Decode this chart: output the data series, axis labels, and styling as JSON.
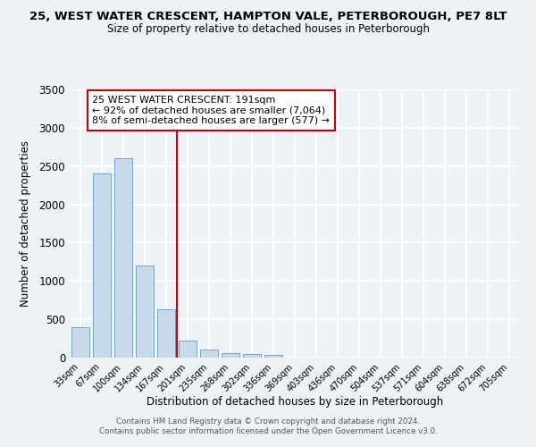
{
  "title_line1": "25, WEST WATER CRESCENT, HAMPTON VALE, PETERBOROUGH, PE7 8LT",
  "title_line2": "Size of property relative to detached houses in Peterborough",
  "xlabel": "Distribution of detached houses by size in Peterborough",
  "ylabel": "Number of detached properties",
  "categories": [
    "33sqm",
    "67sqm",
    "100sqm",
    "134sqm",
    "167sqm",
    "201sqm",
    "235sqm",
    "268sqm",
    "302sqm",
    "336sqm",
    "369sqm",
    "403sqm",
    "436sqm",
    "470sqm",
    "504sqm",
    "537sqm",
    "571sqm",
    "604sqm",
    "638sqm",
    "672sqm",
    "705sqm"
  ],
  "values": [
    400,
    2400,
    2600,
    1200,
    630,
    220,
    100,
    60,
    50,
    40,
    0,
    0,
    0,
    0,
    0,
    0,
    0,
    0,
    0,
    0,
    0
  ],
  "bar_color": "#c8d9ea",
  "bar_edge_color": "#6699bb",
  "vline_color": "#cc0000",
  "vline_index": 4.5,
  "annotation_text": "25 WEST WATER CRESCENT: 191sqm\n← 92% of detached houses are smaller (7,064)\n8% of semi-detached houses are larger (577) →",
  "annotation_box_color": "#cc0000",
  "ylim_max": 3500,
  "yticks": [
    0,
    500,
    1000,
    1500,
    2000,
    2500,
    3000,
    3500
  ],
  "footer_line1": "Contains HM Land Registry data © Crown copyright and database right 2024.",
  "footer_line2": "Contains public sector information licensed under the Open Government Licence v3.0.",
  "bg_color": "#edf2f7",
  "grid_color": "#ffffff"
}
